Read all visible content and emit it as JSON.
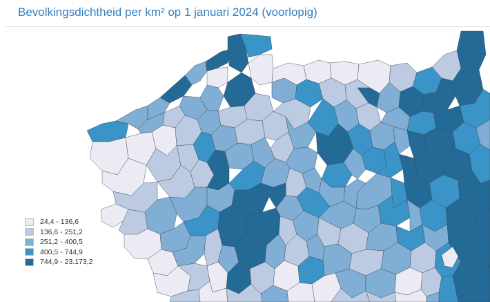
{
  "title": "Bevolkingsdichtheid per km² op 1 januari 2024 (voorlopig)",
  "legend": {
    "classes": [
      {
        "label": "24,4 - 136,6",
        "color": "#ecebf3"
      },
      {
        "label": "136,6 - 251,2",
        "color": "#bccbe1"
      },
      {
        "label": "251,2 - 400,5",
        "color": "#80aed4"
      },
      {
        "label": "400,5 - 744,9",
        "color": "#3a94c8"
      },
      {
        "label": "744,9 - 23.173,2",
        "color": "#236a97"
      }
    ]
  }
}
